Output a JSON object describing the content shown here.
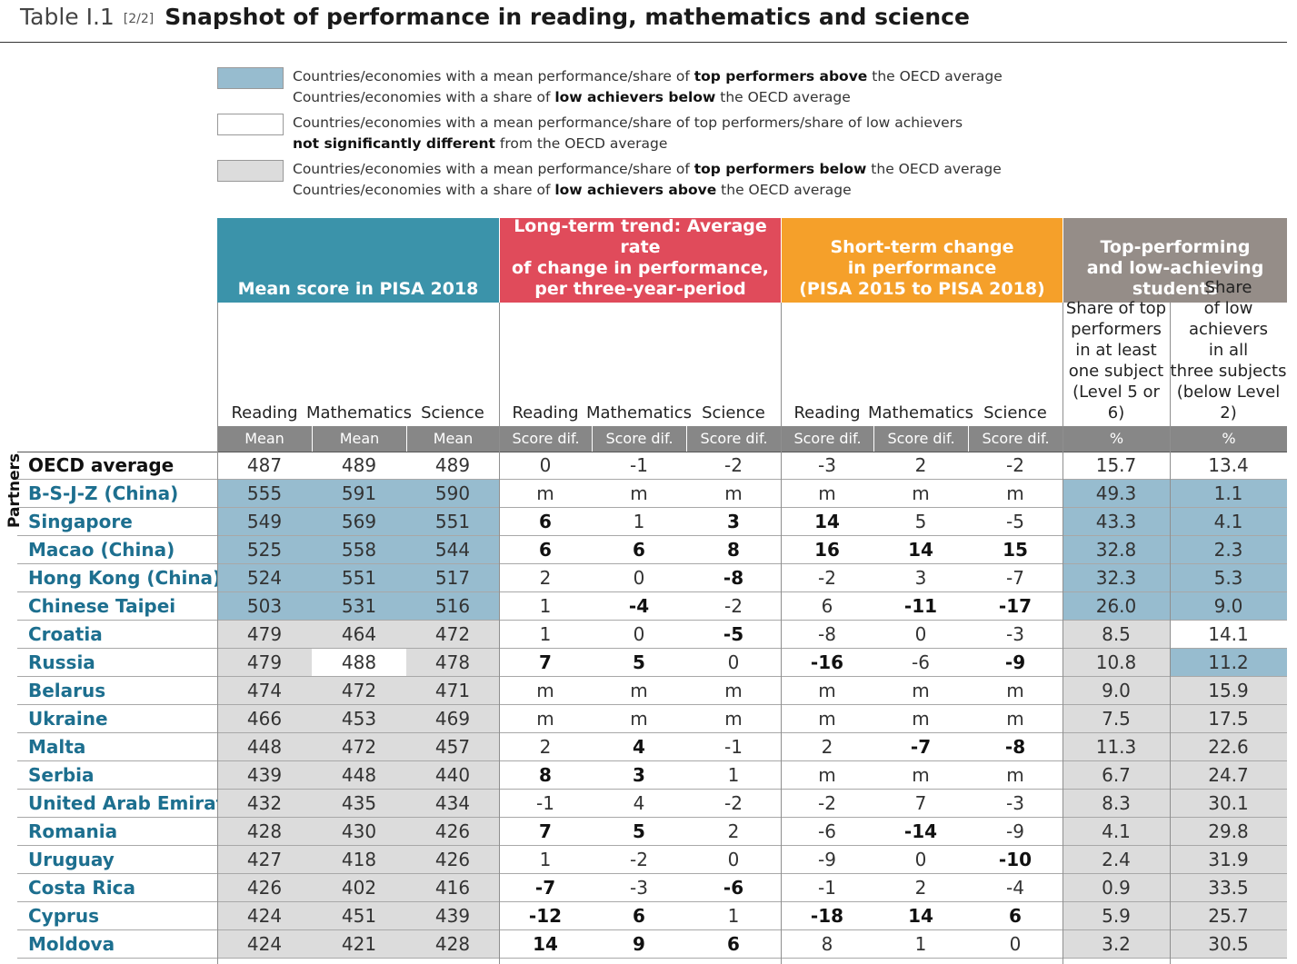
{
  "title": {
    "prefix": "Table I.1",
    "part": "[2/2]",
    "text": "Snapshot of performance in reading, mathematics and science"
  },
  "legend": [
    {
      "color": "#97bccf",
      "line1": [
        {
          "t": "Countries/economies with a mean performance/share of "
        },
        {
          "t": "top performers above",
          "b": true
        },
        {
          "t": " the OECD average"
        }
      ],
      "line2": [
        {
          "t": "Countries/economies with a share of "
        },
        {
          "t": "low achievers below",
          "b": true
        },
        {
          "t": " the OECD average"
        }
      ]
    },
    {
      "color": "#ffffff",
      "line1": [
        {
          "t": "Countries/economies with a mean performance/share of top performers/share of low achievers"
        }
      ],
      "line2": [
        {
          "t": "not significantly different",
          "b": true
        },
        {
          "t": " from the OECD average"
        }
      ]
    },
    {
      "color": "#dcdcdc",
      "line1": [
        {
          "t": "Countries/economies with a mean performance/share of "
        },
        {
          "t": "top performers below",
          "b": true
        },
        {
          "t": " the OECD average"
        }
      ],
      "line2": [
        {
          "t": "Countries/economies with a share of "
        },
        {
          "t": "low achievers above",
          "b": true
        },
        {
          "t": " the OECD average"
        }
      ]
    }
  ],
  "colors": {
    "mean": "#3b93aa",
    "longterm": "#e04b5b",
    "shortterm": "#f5a02a",
    "top": "#958d88",
    "unit": "#878787",
    "blue": "#97bccf",
    "grey": "#dcdcdc"
  },
  "groups": [
    {
      "label": "Mean score in PISA 2018",
      "color": "mean"
    },
    {
      "label": "Long-term trend: Average rate\nof change in performance,\nper three-year-period",
      "color": "longterm"
    },
    {
      "label": "Short-term change\nin performance\n(PISA 2015 to PISA 2018)",
      "color": "shortterm"
    },
    {
      "label": "Top-performing\nand low-achieving\nstudents",
      "color": "top"
    }
  ],
  "subheaders": [
    "Reading",
    "Mathematics",
    "Science",
    "Reading",
    "Mathematics",
    "Science",
    "Reading",
    "Mathematics",
    "Science",
    "Share of top\nperformers\nin at least\none subject\n(Level 5 or 6)",
    "Share\nof low achievers\nin all\nthree subjects\n(below Level 2)"
  ],
  "units": [
    "Mean",
    "Mean",
    "Mean",
    "Score dif.",
    "Score dif.",
    "Score dif.",
    "Score dif.",
    "Score dif.",
    "Score dif.",
    "%",
    "%"
  ],
  "side_label": "Partners",
  "rows": [
    {
      "name": "OECD average",
      "oecd": true,
      "v": [
        "487",
        "489",
        "489",
        "0",
        "-1",
        "-2",
        "-3",
        "2",
        "-2",
        "15.7",
        "13.4"
      ],
      "s": [
        "w",
        "w",
        "w",
        "w",
        "w",
        "w",
        "w",
        "w",
        "w",
        "w",
        "w"
      ],
      "b": []
    },
    {
      "name": "B-S-J-Z (China)",
      "v": [
        "555",
        "591",
        "590",
        "m",
        "m",
        "m",
        "m",
        "m",
        "m",
        "49.3",
        "1.1"
      ],
      "s": [
        "b",
        "b",
        "b",
        "w",
        "w",
        "w",
        "w",
        "w",
        "w",
        "b",
        "b"
      ],
      "b": []
    },
    {
      "name": "Singapore",
      "v": [
        "549",
        "569",
        "551",
        "6",
        "1",
        "3",
        "14",
        "5",
        "-5",
        "43.3",
        "4.1"
      ],
      "s": [
        "b",
        "b",
        "b",
        "w",
        "w",
        "w",
        "w",
        "w",
        "w",
        "b",
        "b"
      ],
      "b": [
        3,
        5,
        6
      ]
    },
    {
      "name": "Macao (China)",
      "v": [
        "525",
        "558",
        "544",
        "6",
        "6",
        "8",
        "16",
        "14",
        "15",
        "32.8",
        "2.3"
      ],
      "s": [
        "b",
        "b",
        "b",
        "w",
        "w",
        "w",
        "w",
        "w",
        "w",
        "b",
        "b"
      ],
      "b": [
        3,
        4,
        5,
        6,
        7,
        8
      ]
    },
    {
      "name": "Hong Kong (China)",
      "v": [
        "524",
        "551",
        "517",
        "2",
        "0",
        "-8",
        "-2",
        "3",
        "-7",
        "32.3",
        "5.3"
      ],
      "s": [
        "b",
        "b",
        "b",
        "w",
        "w",
        "w",
        "w",
        "w",
        "w",
        "b",
        "b"
      ],
      "b": [
        5
      ]
    },
    {
      "name": "Chinese Taipei",
      "v": [
        "503",
        "531",
        "516",
        "1",
        "-4",
        "-2",
        "6",
        "-11",
        "-17",
        "26.0",
        "9.0"
      ],
      "s": [
        "b",
        "b",
        "b",
        "w",
        "w",
        "w",
        "w",
        "w",
        "w",
        "b",
        "b"
      ],
      "b": [
        4,
        7,
        8
      ]
    },
    {
      "name": "Croatia",
      "v": [
        "479",
        "464",
        "472",
        "1",
        "0",
        "-5",
        "-8",
        "0",
        "-3",
        "8.5",
        "14.1"
      ],
      "s": [
        "g",
        "g",
        "g",
        "w",
        "w",
        "w",
        "w",
        "w",
        "w",
        "g",
        "w"
      ],
      "b": [
        5
      ]
    },
    {
      "name": "Russia",
      "v": [
        "479",
        "488",
        "478",
        "7",
        "5",
        "0",
        "-16",
        "-6",
        "-9",
        "10.8",
        "11.2"
      ],
      "s": [
        "g",
        "w",
        "g",
        "w",
        "w",
        "w",
        "w",
        "w",
        "w",
        "g",
        "b"
      ],
      "b": [
        3,
        4,
        6,
        8
      ]
    },
    {
      "name": "Belarus",
      "v": [
        "474",
        "472",
        "471",
        "m",
        "m",
        "m",
        "m",
        "m",
        "m",
        "9.0",
        "15.9"
      ],
      "s": [
        "g",
        "g",
        "g",
        "w",
        "w",
        "w",
        "w",
        "w",
        "w",
        "g",
        "g"
      ],
      "b": []
    },
    {
      "name": "Ukraine",
      "v": [
        "466",
        "453",
        "469",
        "m",
        "m",
        "m",
        "m",
        "m",
        "m",
        "7.5",
        "17.5"
      ],
      "s": [
        "g",
        "g",
        "g",
        "w",
        "w",
        "w",
        "w",
        "w",
        "w",
        "g",
        "g"
      ],
      "b": []
    },
    {
      "name": "Malta",
      "v": [
        "448",
        "472",
        "457",
        "2",
        "4",
        "-1",
        "2",
        "-7",
        "-8",
        "11.3",
        "22.6"
      ],
      "s": [
        "g",
        "g",
        "g",
        "w",
        "w",
        "w",
        "w",
        "w",
        "w",
        "g",
        "g"
      ],
      "b": [
        4,
        7,
        8
      ]
    },
    {
      "name": "Serbia",
      "v": [
        "439",
        "448",
        "440",
        "8",
        "3",
        "1",
        "m",
        "m",
        "m",
        "6.7",
        "24.7"
      ],
      "s": [
        "g",
        "g",
        "g",
        "w",
        "w",
        "w",
        "w",
        "w",
        "w",
        "g",
        "g"
      ],
      "b": [
        3,
        4
      ]
    },
    {
      "name": "United Arab Emirates",
      "v": [
        "432",
        "435",
        "434",
        "-1",
        "4",
        "-2",
        "-2",
        "7",
        "-3",
        "8.3",
        "30.1"
      ],
      "s": [
        "g",
        "g",
        "g",
        "w",
        "w",
        "w",
        "w",
        "w",
        "w",
        "g",
        "g"
      ],
      "b": []
    },
    {
      "name": "Romania",
      "v": [
        "428",
        "430",
        "426",
        "7",
        "5",
        "2",
        "-6",
        "-14",
        "-9",
        "4.1",
        "29.8"
      ],
      "s": [
        "g",
        "g",
        "g",
        "w",
        "w",
        "w",
        "w",
        "w",
        "w",
        "g",
        "g"
      ],
      "b": [
        3,
        4,
        7
      ]
    },
    {
      "name": "Uruguay",
      "v": [
        "427",
        "418",
        "426",
        "1",
        "-2",
        "0",
        "-9",
        "0",
        "-10",
        "2.4",
        "31.9"
      ],
      "s": [
        "g",
        "g",
        "g",
        "w",
        "w",
        "w",
        "w",
        "w",
        "w",
        "g",
        "g"
      ],
      "b": [
        8
      ]
    },
    {
      "name": "Costa Rica",
      "v": [
        "426",
        "402",
        "416",
        "-7",
        "-3",
        "-6",
        "-1",
        "2",
        "-4",
        "0.9",
        "33.5"
      ],
      "s": [
        "g",
        "g",
        "g",
        "w",
        "w",
        "w",
        "w",
        "w",
        "w",
        "g",
        "g"
      ],
      "b": [
        3,
        5
      ]
    },
    {
      "name": "Cyprus",
      "v": [
        "424",
        "451",
        "439",
        "-12",
        "6",
        "1",
        "-18",
        "14",
        "6",
        "5.9",
        "25.7"
      ],
      "s": [
        "g",
        "g",
        "g",
        "w",
        "w",
        "w",
        "w",
        "w",
        "w",
        "g",
        "g"
      ],
      "b": [
        3,
        4,
        6,
        7,
        8
      ]
    },
    {
      "name": "Moldova",
      "v": [
        "424",
        "421",
        "428",
        "14",
        "9",
        "6",
        "8",
        "1",
        "0",
        "3.2",
        "30.5"
      ],
      "s": [
        "g",
        "g",
        "g",
        "w",
        "w",
        "w",
        "w",
        "w",
        "w",
        "g",
        "g"
      ],
      "b": [
        3,
        4,
        5
      ]
    }
  ]
}
